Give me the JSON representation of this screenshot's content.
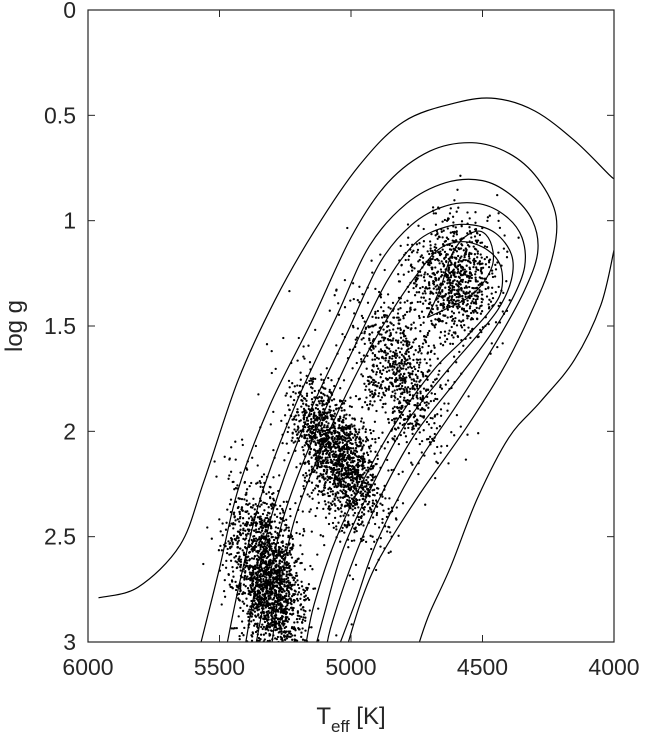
{
  "chart_data": {
    "type": "scatter",
    "title": "",
    "xlabel": "T",
    "xlabel_subscript": "eff",
    "xlabel_unit": "[K]",
    "ylabel": "log g",
    "xlim": [
      6000,
      4000
    ],
    "ylim": [
      0,
      3
    ],
    "x_reversed": true,
    "y_reversed": true,
    "xticks": [
      "6000",
      "5500",
      "5000",
      "4500",
      "4000"
    ],
    "xtick_values": [
      6000,
      5500,
      5000,
      4500,
      4000
    ],
    "yticks": [
      "0",
      "0.5",
      "1",
      "1.5",
      "2",
      "2.5",
      "3"
    ],
    "ytick_values": [
      0,
      0.5,
      1,
      1.5,
      2,
      2.5,
      3
    ],
    "grid": false,
    "legend": "none",
    "colors": {
      "points": "#000000",
      "contours": "#000000",
      "axes": "#262626"
    },
    "density_clusters": [
      {
        "teff_center": 5310,
        "logg_center": 2.72,
        "teff_sd": 70,
        "logg_sd": 0.2,
        "tilt": -0.0013,
        "weight": 0.38
      },
      {
        "teff_center": 5050,
        "logg_center": 2.12,
        "teff_sd": 85,
        "logg_sd": 0.14,
        "tilt": -0.0012,
        "weight": 0.3
      },
      {
        "teff_center": 4820,
        "logg_center": 1.72,
        "teff_sd": 90,
        "logg_sd": 0.16,
        "tilt": -0.0009,
        "weight": 0.16
      },
      {
        "teff_center": 4610,
        "logg_center": 1.28,
        "teff_sd": 90,
        "logg_sd": 0.14,
        "tilt": 0.0,
        "weight": 0.16
      }
    ],
    "contours": [
      {
        "level": 1,
        "points": [
          [
            5960,
            2.79
          ],
          [
            5810,
            2.74
          ],
          [
            5650,
            2.54
          ],
          [
            5560,
            2.24
          ],
          [
            5430,
            1.76
          ],
          [
            5290,
            1.38
          ],
          [
            5140,
            1.05
          ],
          [
            4970,
            0.74
          ],
          [
            4800,
            0.53
          ],
          [
            4600,
            0.44
          ],
          [
            4450,
            0.42
          ],
          [
            4300,
            0.48
          ],
          [
            4150,
            0.62
          ],
          [
            4020,
            0.78
          ],
          [
            4000,
            0.8
          ]
        ]
      },
      {
        "level": 2,
        "points": [
          [
            4000,
            1.14
          ],
          [
            4050,
            1.4
          ],
          [
            4150,
            1.66
          ],
          [
            4280,
            1.86
          ],
          [
            4400,
            2.03
          ],
          [
            4520,
            2.32
          ],
          [
            4620,
            2.64
          ],
          [
            4700,
            2.86
          ],
          [
            4740,
            3.0
          ]
        ]
      },
      {
        "level": 3,
        "points": [
          [
            5570,
            3.0
          ],
          [
            5500,
            2.65
          ],
          [
            5430,
            2.28
          ],
          [
            5310,
            1.88
          ],
          [
            5150,
            1.48
          ],
          [
            5000,
            1.08
          ],
          [
            4860,
            0.82
          ],
          [
            4700,
            0.67
          ],
          [
            4540,
            0.63
          ],
          [
            4400,
            0.68
          ],
          [
            4290,
            0.8
          ],
          [
            4220,
            0.98
          ],
          [
            4240,
            1.2
          ],
          [
            4320,
            1.45
          ],
          [
            4420,
            1.7
          ],
          [
            4560,
            1.98
          ],
          [
            4740,
            2.3
          ],
          [
            4890,
            2.6
          ],
          [
            4960,
            2.8
          ],
          [
            5010,
            3.0
          ]
        ]
      },
      {
        "level": 4,
        "points": [
          [
            5470,
            3.0
          ],
          [
            5420,
            2.7
          ],
          [
            5340,
            2.3
          ],
          [
            5210,
            1.87
          ],
          [
            5050,
            1.44
          ],
          [
            4930,
            1.12
          ],
          [
            4790,
            0.92
          ],
          [
            4640,
            0.82
          ],
          [
            4500,
            0.81
          ],
          [
            4390,
            0.88
          ],
          [
            4310,
            1.0
          ],
          [
            4290,
            1.15
          ],
          [
            4340,
            1.33
          ],
          [
            4440,
            1.56
          ],
          [
            4590,
            1.86
          ],
          [
            4760,
            2.18
          ],
          [
            4900,
            2.52
          ],
          [
            4980,
            2.8
          ],
          [
            5040,
            3.0
          ]
        ]
      },
      {
        "level": 5,
        "points": [
          [
            5400,
            3.0
          ],
          [
            5360,
            2.72
          ],
          [
            5290,
            2.35
          ],
          [
            5160,
            1.92
          ],
          [
            5010,
            1.52
          ],
          [
            4890,
            1.2
          ],
          [
            4770,
            1.02
          ],
          [
            4640,
            0.93
          ],
          [
            4510,
            0.92
          ],
          [
            4410,
            0.98
          ],
          [
            4350,
            1.08
          ],
          [
            4340,
            1.22
          ],
          [
            4390,
            1.38
          ],
          [
            4480,
            1.56
          ],
          [
            4600,
            1.76
          ],
          [
            4760,
            2.02
          ],
          [
            4900,
            2.34
          ],
          [
            5000,
            2.64
          ],
          [
            5070,
            2.9
          ],
          [
            5090,
            3.0
          ]
        ]
      },
      {
        "level": 6,
        "points": [
          [
            5360,
            3.0
          ],
          [
            5320,
            2.75
          ],
          [
            5250,
            2.38
          ],
          [
            5120,
            1.96
          ],
          [
            4980,
            1.58
          ],
          [
            4860,
            1.28
          ],
          [
            4750,
            1.1
          ],
          [
            4640,
            1.03
          ],
          [
            4540,
            1.02
          ],
          [
            4450,
            1.06
          ],
          [
            4390,
            1.16
          ],
          [
            4390,
            1.28
          ],
          [
            4440,
            1.42
          ],
          [
            4530,
            1.56
          ],
          [
            4640,
            1.72
          ],
          [
            4790,
            1.96
          ],
          [
            4920,
            2.26
          ],
          [
            5030,
            2.56
          ],
          [
            5100,
            2.86
          ],
          [
            5130,
            3.0
          ]
        ]
      },
      {
        "level": 7,
        "points": [
          [
            5300,
            3.0
          ],
          [
            5270,
            2.74
          ],
          [
            5210,
            2.4
          ],
          [
            5090,
            2.02
          ],
          [
            4960,
            1.68
          ],
          [
            4840,
            1.42
          ],
          [
            4740,
            1.24
          ],
          [
            4660,
            1.13
          ],
          [
            4570,
            1.1
          ],
          [
            4480,
            1.14
          ],
          [
            4430,
            1.22
          ],
          [
            4430,
            1.34
          ],
          [
            4480,
            1.44
          ],
          [
            4560,
            1.55
          ],
          [
            4680,
            1.7
          ],
          [
            4810,
            1.92
          ],
          [
            4940,
            2.2
          ],
          [
            5060,
            2.52
          ],
          [
            5140,
            2.82
          ],
          [
            5170,
            3.0
          ]
        ]
      },
      {
        "level": 8,
        "points": [
          [
            4710,
            1.46
          ],
          [
            4660,
            1.32
          ],
          [
            4620,
            1.17
          ],
          [
            4570,
            1.08
          ],
          [
            4510,
            1.05
          ],
          [
            4470,
            1.1
          ],
          [
            4460,
            1.2
          ],
          [
            4500,
            1.3
          ],
          [
            4560,
            1.37
          ],
          [
            4640,
            1.42
          ],
          [
            4710,
            1.46
          ]
        ]
      }
    ],
    "n_points": 5200,
    "random_seed": 42
  }
}
